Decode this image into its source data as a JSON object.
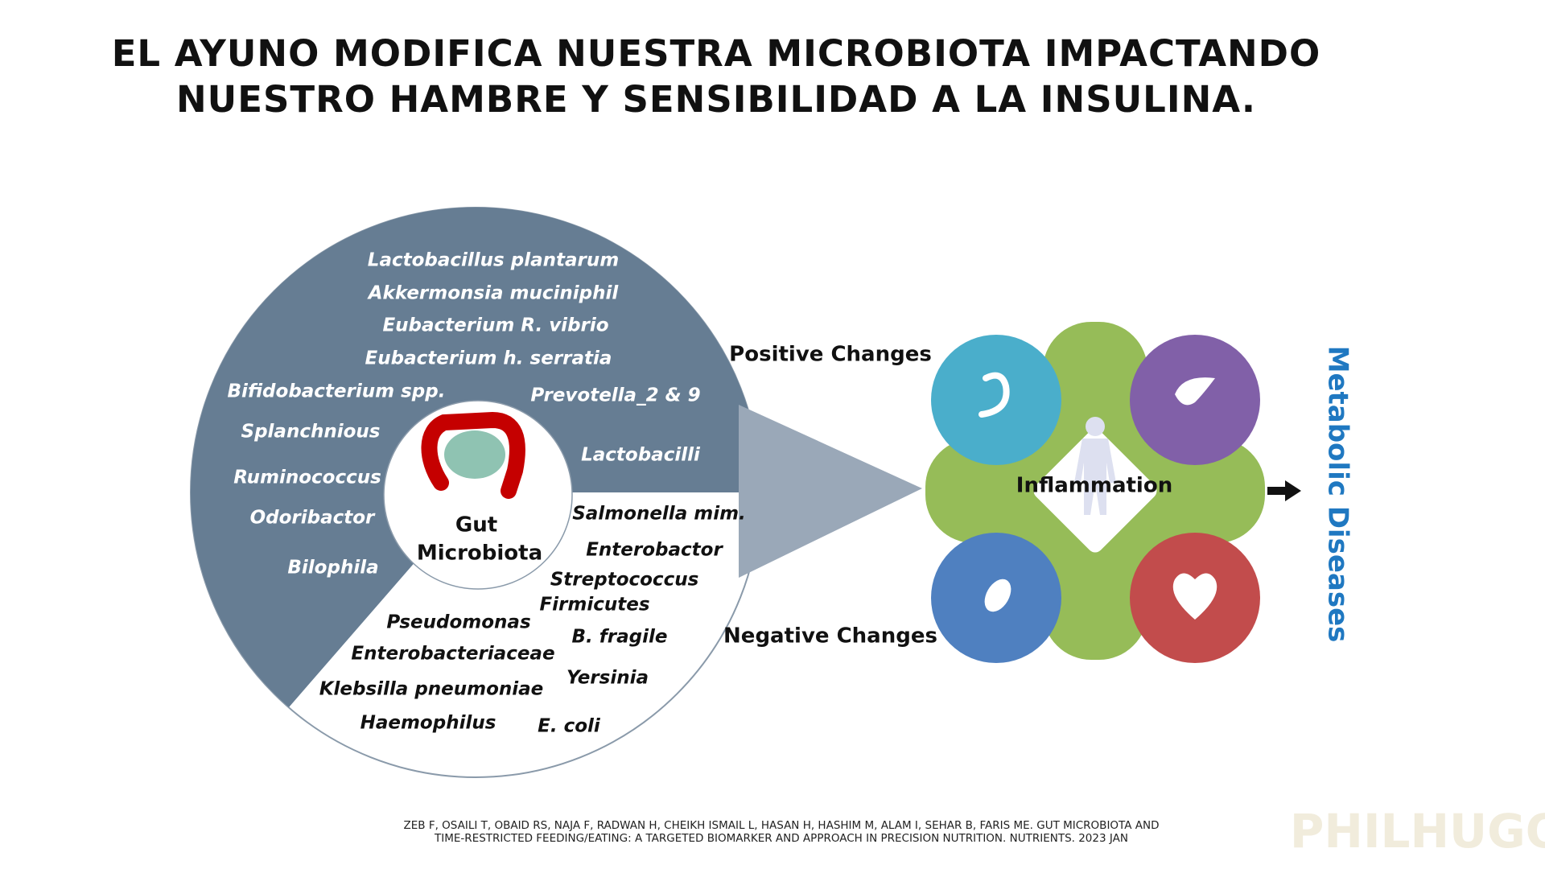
{
  "title": {
    "lines": [
      "EL AYUNO MODIFICA NUESTRA MICROBIOTA IMPACTANDO",
      "NUESTRO HAMBRE Y SENSIBILIDAD A LA INSULINA."
    ]
  },
  "diagram": {
    "positive_bacteria": [
      "Lactobacillus plantarum",
      "Akkermonsia muciniphil",
      "Eubacterium R. vibrio",
      "Eubacterium h. serratia",
      "Bifidobacterium spp.",
      "Prevotella_2 & 9",
      "Splanchnious",
      "Lactobacilli",
      "Ruminococcus",
      "Odoribactor",
      "Bilophila"
    ],
    "negative_bacteria": [
      "Salmonella mim.",
      "Enterobactor",
      "Streptococcus",
      "Firmicutes",
      "Pseudomonas",
      "B. fragile",
      "Enterobacteriaceae",
      "Yersinia",
      "Klebsilla pneumoniae",
      "Haemophilus",
      "E. coli"
    ],
    "center_label": [
      "Gut",
      "Microbiota"
    ],
    "positive_label": "Positive Changes",
    "negative_label": "Negative Changes",
    "inflammation_label": "Inflammation",
    "outcome_label": "Metabolic Diseases"
  },
  "citation": {
    "lines": [
      "ZEB F, OSAILI T, OBAID RS, NAJA F, RADWAN H, CHEIKH ISMAIL L, HASAN H, HASHIM M, ALAM I, SEHAR B, FARIS ME. GUT MICROBIOTA AND",
      "TIME-RESTRICTED FEEDING/EATING: A TARGETED BIOMARKER AND APPROACH IN PRECISION NUTRITION. NUTRIENTS. 2023 JAN"
    ]
  },
  "watermark": "PHILHUGO"
}
